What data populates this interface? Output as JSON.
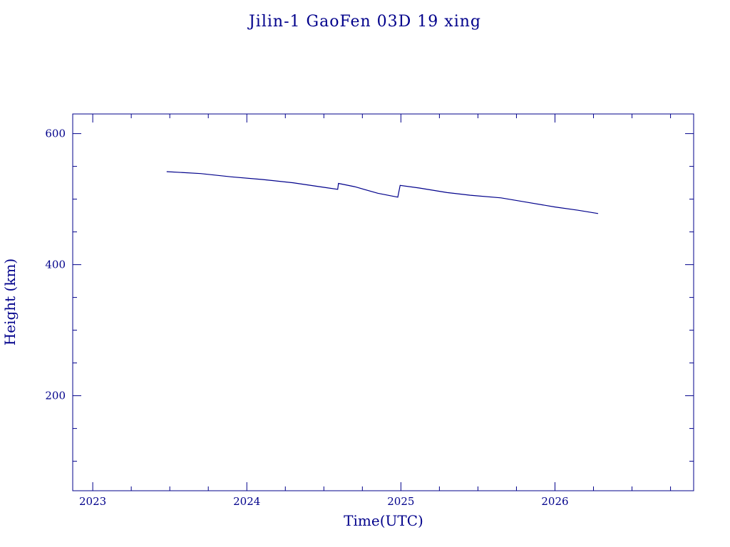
{
  "chart_data": {
    "type": "line",
    "title": "Jilin-1 GaoFen 03D 19 xing",
    "xlabel": "Time(UTC)",
    "ylabel": "Height (km)",
    "xlim": [
      2022.87,
      2026.9
    ],
    "ylim": [
      55,
      630
    ],
    "x_ticks": [
      2023,
      2024,
      2025,
      2026
    ],
    "y_ticks": [
      200,
      400,
      600
    ],
    "grid": false,
    "color": "#00008b",
    "series": [
      {
        "name": "",
        "points": [
          [
            2023.48,
            542
          ],
          [
            2023.7,
            539
          ],
          [
            2023.9,
            534
          ],
          [
            2024.1,
            530
          ],
          [
            2024.3,
            525
          ],
          [
            2024.5,
            518
          ],
          [
            2024.59,
            515
          ],
          [
            2024.595,
            524
          ],
          [
            2024.7,
            519
          ],
          [
            2024.85,
            509
          ],
          [
            2024.98,
            503
          ],
          [
            2024.995,
            521
          ],
          [
            2025.12,
            517
          ],
          [
            2025.3,
            510
          ],
          [
            2025.45,
            506
          ],
          [
            2025.65,
            502
          ],
          [
            2025.8,
            496
          ],
          [
            2026.0,
            488
          ],
          [
            2026.15,
            483
          ],
          [
            2026.28,
            478
          ]
        ]
      }
    ]
  }
}
